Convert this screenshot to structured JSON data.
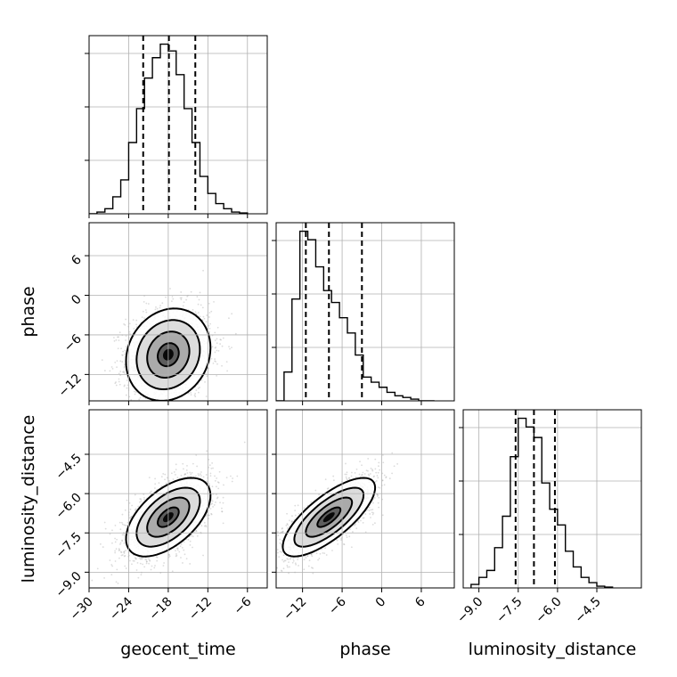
{
  "chart_data": {
    "type": "corner",
    "parameters": [
      "geocent_time",
      "phase",
      "luminosity_distance"
    ],
    "axis_labels": {
      "geocent_time": "geocent_time",
      "phase": "phase",
      "luminosity_distance": "luminosity_distance"
    },
    "ranges": {
      "geocent_time": [
        -30,
        -3
      ],
      "phase": [
        -16,
        11
      ],
      "luminosity_distance": [
        -9.6,
        -2.8
      ]
    },
    "ticks": {
      "geocent_time": [
        -30,
        -24,
        -18,
        -12,
        -6
      ],
      "phase": [
        -12,
        -6,
        0,
        6
      ],
      "luminosity_distance": [
        -9.0,
        -7.5,
        -6.0,
        -4.5
      ]
    },
    "tick_labels": {
      "geocent_time": [
        "−30",
        "−24",
        "−18",
        "−12",
        "−6"
      ],
      "phase": [
        "−12",
        "−6",
        "0",
        "6"
      ],
      "luminosity_distance": [
        "−9.0",
        "−7.5",
        "−6.0",
        "−4.5"
      ]
    },
    "histograms": {
      "geocent_time": {
        "edges": [
          -30,
          -28.8,
          -27.6,
          -26.4,
          -25.2,
          -24,
          -22.8,
          -21.6,
          -20.4,
          -19.2,
          -18,
          -16.8,
          -15.6,
          -14.4,
          -13.2,
          -12,
          -10.8,
          -9.6,
          -8.4,
          -7.2,
          -6
        ],
        "counts": [
          0,
          0.01,
          0.03,
          0.1,
          0.2,
          0.42,
          0.62,
          0.8,
          0.92,
          1.0,
          0.96,
          0.82,
          0.62,
          0.42,
          0.22,
          0.12,
          0.06,
          0.03,
          0.01,
          0.005
        ],
        "quantiles": [
          -21.8,
          -17.9,
          -13.9
        ]
      },
      "phase": {
        "edges": [
          -16,
          -14.8,
          -13.6,
          -12.4,
          -11.2,
          -10,
          -8.8,
          -7.6,
          -6.4,
          -5.2,
          -4,
          -2.8,
          -1.6,
          -0.4,
          0.8,
          2,
          3.2,
          4.4,
          5.6,
          6.8,
          8
        ],
        "counts": [
          0.0,
          0.17,
          0.6,
          1.0,
          0.95,
          0.79,
          0.65,
          0.58,
          0.49,
          0.4,
          0.27,
          0.14,
          0.11,
          0.08,
          0.05,
          0.03,
          0.02,
          0.01,
          0.0,
          0.0
        ],
        "quantiles": [
          -11.5,
          -8.0,
          -3.0
        ]
      },
      "luminosity_distance": {
        "edges": [
          -9.3,
          -9.0,
          -8.7,
          -8.4,
          -8.1,
          -7.8,
          -7.5,
          -7.2,
          -6.9,
          -6.6,
          -6.3,
          -6.0,
          -5.7,
          -5.4,
          -5.1,
          -4.8,
          -4.5,
          -4.2,
          -3.9
        ],
        "counts": [
          0.02,
          0.06,
          0.1,
          0.23,
          0.41,
          0.75,
          0.97,
          0.92,
          0.86,
          0.6,
          0.45,
          0.36,
          0.21,
          0.12,
          0.06,
          0.03,
          0.01,
          0.005
        ],
        "quantiles": [
          -7.6,
          -6.9,
          -6.1
        ]
      }
    },
    "joint": {
      "phase_vs_geocent_time": {
        "mean": [
          -18.0,
          -9.0
        ],
        "std": [
          3.2,
          3.5
        ],
        "corr": 0.15
      },
      "luminosity_distance_vs_geocent_time": {
        "mean": [
          -18.0,
          -6.9
        ],
        "std": [
          3.2,
          0.75
        ],
        "corr": 0.55
      },
      "luminosity_distance_vs_phase": {
        "mean": [
          -8.0,
          -6.9
        ],
        "std": [
          3.5,
          0.75
        ],
        "corr": 0.75
      }
    }
  }
}
